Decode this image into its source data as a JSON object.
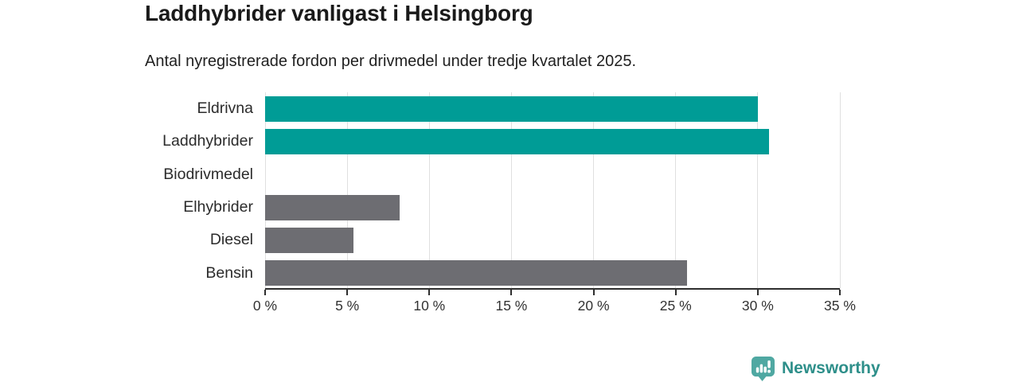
{
  "header": {
    "title": "Laddhybrider vanligast i Helsingborg",
    "subtitle": "Antal nyregistrerade fordon per drivmedel under tredje kvartalet 2025."
  },
  "chart_data": {
    "type": "bar",
    "orientation": "horizontal",
    "title": "Laddhybrider vanligast i Helsingborg",
    "subtitle": "Antal nyregistrerade fordon per drivmedel under tredje kvartalet 2025.",
    "categories": [
      "Eldrivna",
      "Laddhybrider",
      "Biodrivmedel",
      "Elhybrider",
      "Diesel",
      "Bensin"
    ],
    "values": [
      30.0,
      30.7,
      0,
      8.2,
      5.4,
      25.7
    ],
    "unit": "%",
    "xlim": [
      0,
      35
    ],
    "x_tick_step": 5,
    "x_tick_labels": [
      "0 %",
      "5 %",
      "10 %",
      "15 %",
      "20 %",
      "25 %",
      "30 %",
      "35 %"
    ],
    "xlabel": "",
    "ylabel": "",
    "grid": true,
    "legend": false,
    "bar_colors": [
      "#009c96",
      "#009c96",
      "#009c96",
      "#6d6d72",
      "#6d6d72",
      "#6d6d72"
    ],
    "highlight_color": "#009c96",
    "default_color": "#6d6d72",
    "gridline_color": "#e0e0e0",
    "axis_color": "#2e2e2e"
  },
  "footer": {
    "brand": "Newsworthy",
    "brand_color": "#2e8f8a",
    "logo_color": "#4fa8a2",
    "logo_icon": "bar-chart-speech-bubble"
  }
}
